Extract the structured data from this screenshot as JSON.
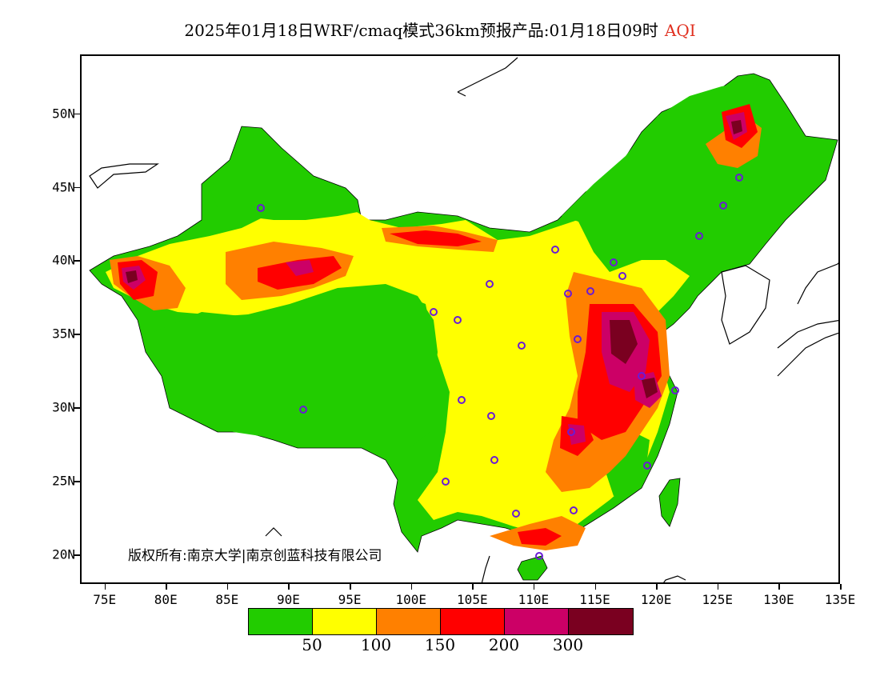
{
  "header": {
    "title": "2025年01月18日WRF/cmaq模式36km预报产品:01月18日09时",
    "variable": "AQI"
  },
  "map": {
    "lon_range": [
      73,
      135
    ],
    "lat_range": [
      18,
      54
    ],
    "lat_labels": [
      {
        "lat": 50,
        "label": "50N"
      },
      {
        "lat": 45,
        "label": "45N"
      },
      {
        "lat": 40,
        "label": "40N"
      },
      {
        "lat": 35,
        "label": "35N"
      },
      {
        "lat": 30,
        "label": "30N"
      },
      {
        "lat": 25,
        "label": "25N"
      },
      {
        "lat": 20,
        "label": "20N"
      }
    ],
    "lon_labels": [
      {
        "lon": 75,
        "label": "75E"
      },
      {
        "lon": 80,
        "label": "80E"
      },
      {
        "lon": 85,
        "label": "85E"
      },
      {
        "lon": 90,
        "label": "90E"
      },
      {
        "lon": 95,
        "label": "95E"
      },
      {
        "lon": 100,
        "label": "100E"
      },
      {
        "lon": 105,
        "label": "105E"
      },
      {
        "lon": 110,
        "label": "110E"
      },
      {
        "lon": 115,
        "label": "115E"
      },
      {
        "lon": 120,
        "label": "120E"
      },
      {
        "lon": 125,
        "label": "125E"
      },
      {
        "lon": 130,
        "label": "130E"
      },
      {
        "lon": 135,
        "label": "135E"
      }
    ],
    "colors": {
      "good": "#22cc00",
      "moderate": "#ffff00",
      "sensitive": "#ff8000",
      "unhealthy": "#ff0000",
      "very_unhealthy": "#cc0066",
      "hazardous": "#7a0020",
      "station": "#6a1bd6",
      "coast": "#000000"
    }
  },
  "copyright": "版权所有:南京大学|南京创蓝科技有限公司",
  "legend": {
    "colors": [
      "#22cc00",
      "#ffff00",
      "#ff8000",
      "#ff0000",
      "#cc0066",
      "#7a0020"
    ],
    "thresholds": [
      "50",
      "100",
      "150",
      "200",
      "300"
    ]
  }
}
